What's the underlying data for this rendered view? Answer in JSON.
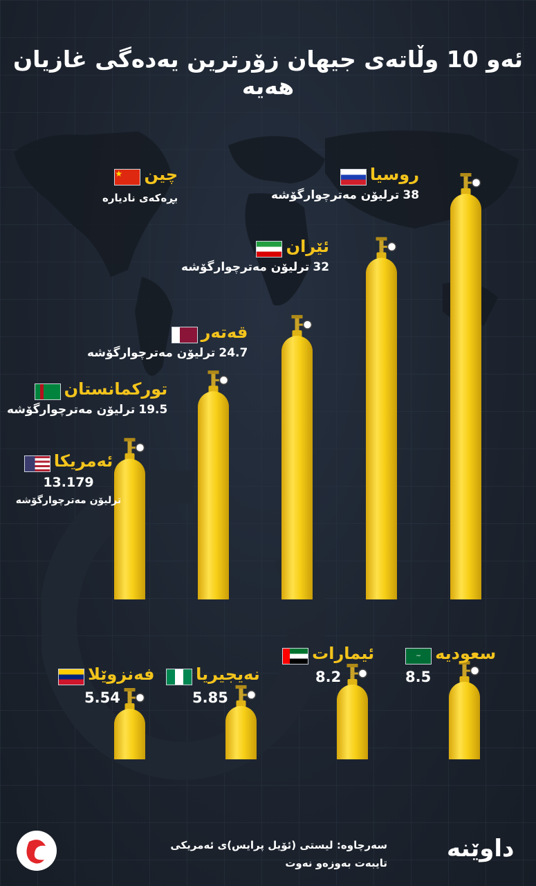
{
  "title": "ئەو 10 وڵاتەی جیهان زۆرترین یەدەگی غازیان هەیە",
  "colors": {
    "background": "#1d2530",
    "cylinder": "#f7cf17",
    "cylinder_dark": "#c99d09",
    "label": "#f4c41c",
    "text": "#ffffff"
  },
  "chart_data": {
    "type": "bar",
    "unit": "ترلیۆن مەتر چوارگۆشە",
    "series": [
      {
        "country": "روسیا",
        "value": 38,
        "value_label": "38",
        "unit_label": "ترلیۆن مەترچوارگۆشە",
        "flag": "russia-flag"
      },
      {
        "country": "ئێران",
        "value": 32,
        "value_label": "32",
        "unit_label": "ترلیۆن مەترچوارگۆشە",
        "flag": "iran-flag"
      },
      {
        "country": "قەتەر",
        "value": 24.7,
        "value_label": "24.7",
        "unit_label": "ترلیۆن مەترچوارگۆشە",
        "flag": "qatar-flag"
      },
      {
        "country": "تورکمانستان",
        "value": 19.5,
        "value_label": "19.5",
        "unit_label": "ترلیۆن مەترچوارگۆشە",
        "flag": "turkmenistan-flag"
      },
      {
        "country": "ئەمریکا",
        "value": 13.179,
        "value_label": "13.179",
        "unit_label": "ترلیۆن مەترچوارگۆشە",
        "flag": "usa-flag"
      },
      {
        "country": "سعودیە",
        "value": 8.5,
        "value_label": "8.5",
        "flag": "saudi-flag"
      },
      {
        "country": "ئیمارات",
        "value": 8.2,
        "value_label": "8.2",
        "flag": "uae-flag"
      },
      {
        "country": "نەیجیریا",
        "value": 5.85,
        "value_label": "5.85",
        "flag": "nigeria-flag"
      },
      {
        "country": "فەنزوێلا",
        "value": 5.54,
        "value_label": "5.54",
        "flag": "venezuela-flag"
      }
    ],
    "unknown": {
      "country": "چین",
      "note": "بڕەکەی نادیارە",
      "flag": "china-flag"
    }
  },
  "source": {
    "line1": "سەرچاوە: لیستی (ئۆیل پرایس)ی ئەمریکی",
    "line2": "تایبەت بەوزەو نەوت"
  },
  "logo": {
    "brand": "داوێنە",
    "mark": "ع"
  }
}
